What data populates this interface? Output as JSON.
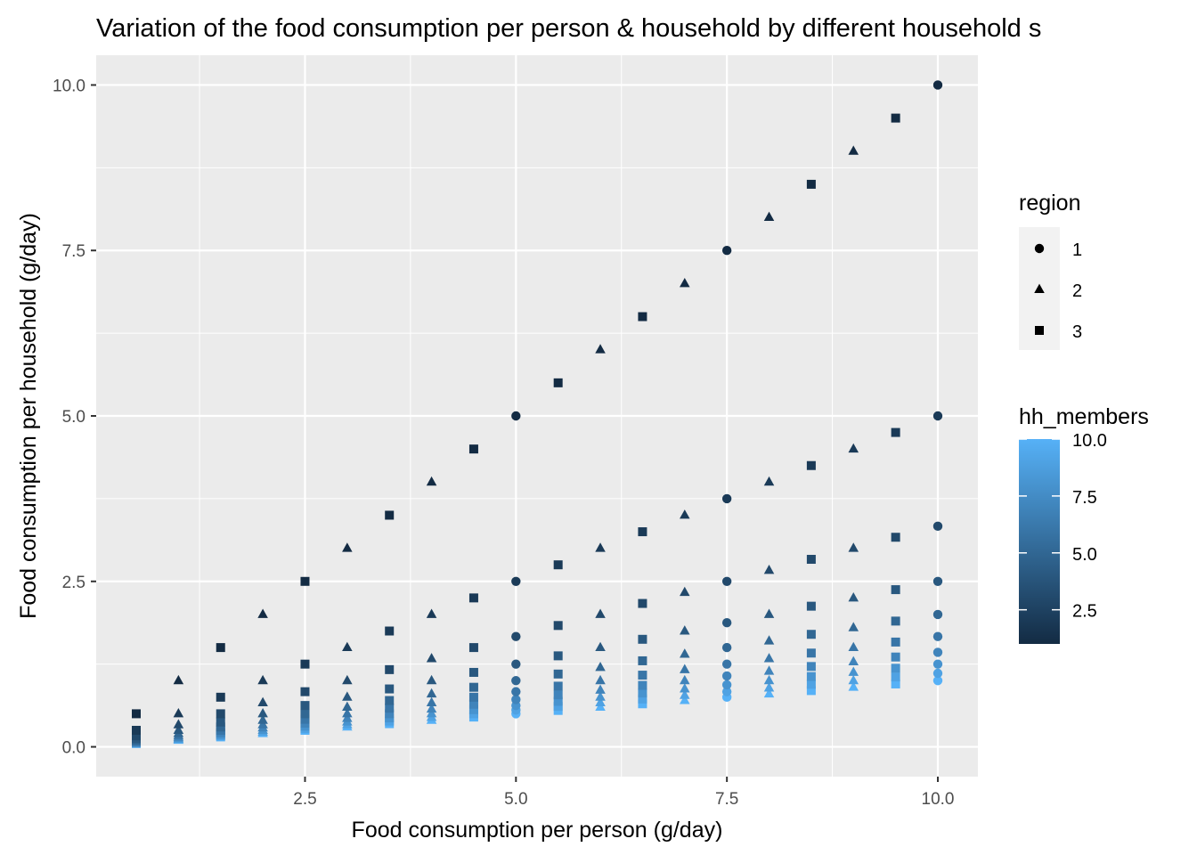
{
  "chart_data": {
    "type": "scatter",
    "title": "Variation of the food consumption per person & household by different household s",
    "xlabel": "Food consumption per person (g/day)",
    "ylabel": "Food consumption per household (g/day)",
    "xlim": [
      0.025,
      10.475
    ],
    "ylim": [
      -0.45,
      10.45
    ],
    "x_ticks": [
      2.5,
      5.0,
      7.5,
      10.0
    ],
    "x_tick_labels": [
      "2.5",
      "5.0",
      "7.5",
      "10.0"
    ],
    "y_ticks": [
      0.0,
      2.5,
      5.0,
      7.5,
      10.0
    ],
    "y_tick_labels": [
      "0.0",
      "2.5",
      "5.0",
      "7.5",
      "10.0"
    ],
    "grid": true,
    "x_values": [
      0.5,
      1,
      1.5,
      2,
      2.5,
      3,
      3.5,
      4,
      4.5,
      5,
      5.5,
      6,
      6.5,
      7,
      7.5,
      8,
      8.5,
      9,
      9.5,
      10
    ],
    "hh_members_values": [
      1,
      2,
      3,
      4,
      5,
      6,
      7,
      8,
      9,
      10
    ],
    "relationship": "y = x / hh_members",
    "shape_rule": "region 1 if x in {5, 7.5, 10} (multiples of 2.5), else 2 if x is an integer, else 3",
    "legend_region": {
      "title": "region",
      "entries": [
        {
          "label": "1",
          "shape": "circle"
        },
        {
          "label": "2",
          "shape": "triangle"
        },
        {
          "label": "3",
          "shape": "square"
        }
      ]
    },
    "legend_color": {
      "title": "hh_members",
      "range": [
        1,
        10
      ],
      "ticks": [
        2.5,
        5.0,
        7.5,
        10.0
      ],
      "tick_labels": [
        "2.5",
        "5.0",
        "7.5",
        "10.0"
      ],
      "low_color": "#132B43",
      "high_color": "#56B1F7"
    },
    "legend_placement": "right",
    "panel_background": "#EBEBEB"
  }
}
